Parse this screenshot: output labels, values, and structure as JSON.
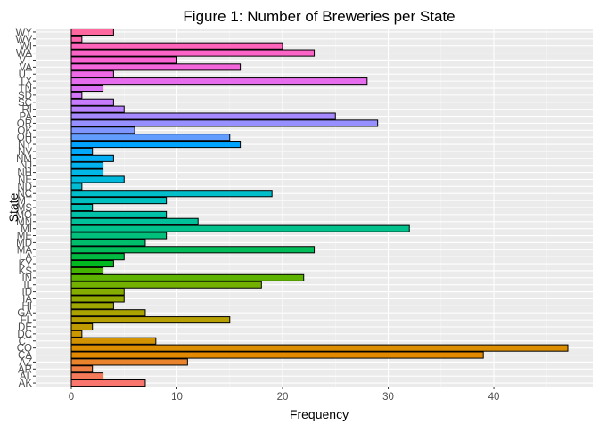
{
  "chart_data": {
    "type": "bar",
    "orientation": "horizontal",
    "title": "Figure 1: Number of Breweries per State",
    "xlabel": "Frequency",
    "ylabel": "State",
    "xlim": [
      0,
      47
    ],
    "x_ticks": [
      0,
      10,
      20,
      30,
      40
    ],
    "grid": true,
    "legend": "none",
    "categories": [
      "AK",
      "AL",
      "AR",
      "AZ",
      "CA",
      "CO",
      "CT",
      "DC",
      "DE",
      "FL",
      "GA",
      "HI",
      "IA",
      "ID",
      "IL",
      "IN",
      "KS",
      "KY",
      "LA",
      "MA",
      "MD",
      "ME",
      "MI",
      "MN",
      "MO",
      "MS",
      "MT",
      "NC",
      "ND",
      "NE",
      "NH",
      "NJ",
      "NM",
      "NV",
      "NY",
      "OH",
      "OK",
      "OR",
      "PA",
      "RI",
      "SC",
      "SD",
      "TN",
      "TX",
      "UT",
      "VA",
      "VT",
      "WA",
      "WI",
      "WV",
      "WY"
    ],
    "values": [
      7,
      3,
      2,
      11,
      39,
      47,
      8,
      1,
      2,
      15,
      7,
      4,
      5,
      5,
      18,
      22,
      3,
      4,
      5,
      23,
      7,
      9,
      32,
      12,
      9,
      2,
      9,
      19,
      1,
      5,
      3,
      3,
      4,
      2,
      16,
      15,
      6,
      29,
      25,
      5,
      4,
      1,
      3,
      28,
      4,
      16,
      10,
      23,
      20,
      1,
      4
    ],
    "colors": [
      "#F8766D",
      "#F47A5A",
      "#EF7F45",
      "#E9842C",
      "#E38900",
      "#DB8E00",
      "#D39200",
      "#CA9700",
      "#C09B00",
      "#B69F00",
      "#ABA300",
      "#9FA600",
      "#92A900",
      "#84AD00",
      "#73B000",
      "#5EB300",
      "#43B500",
      "#00B81F",
      "#00BA42",
      "#00BC59",
      "#00BE6C",
      "#00C07C",
      "#00C08B",
      "#00C199",
      "#00C1A7",
      "#00C1B3",
      "#00C0BF",
      "#00BFCA",
      "#00BDD4",
      "#00BADE",
      "#00B7E7",
      "#00B3EF",
      "#00AEF6",
      "#00A9FC",
      "#00A3FF",
      "#619CFF",
      "#7F96FF",
      "#958FFF",
      "#A789FF",
      "#B983FF",
      "#C77CFF",
      "#D376FA",
      "#DD71F5",
      "#E66DEE",
      "#EE69E6",
      "#F466DC",
      "#F963D2",
      "#FC63C7",
      "#FF64BB",
      "#FF66AD",
      "#FF689F"
    ]
  }
}
